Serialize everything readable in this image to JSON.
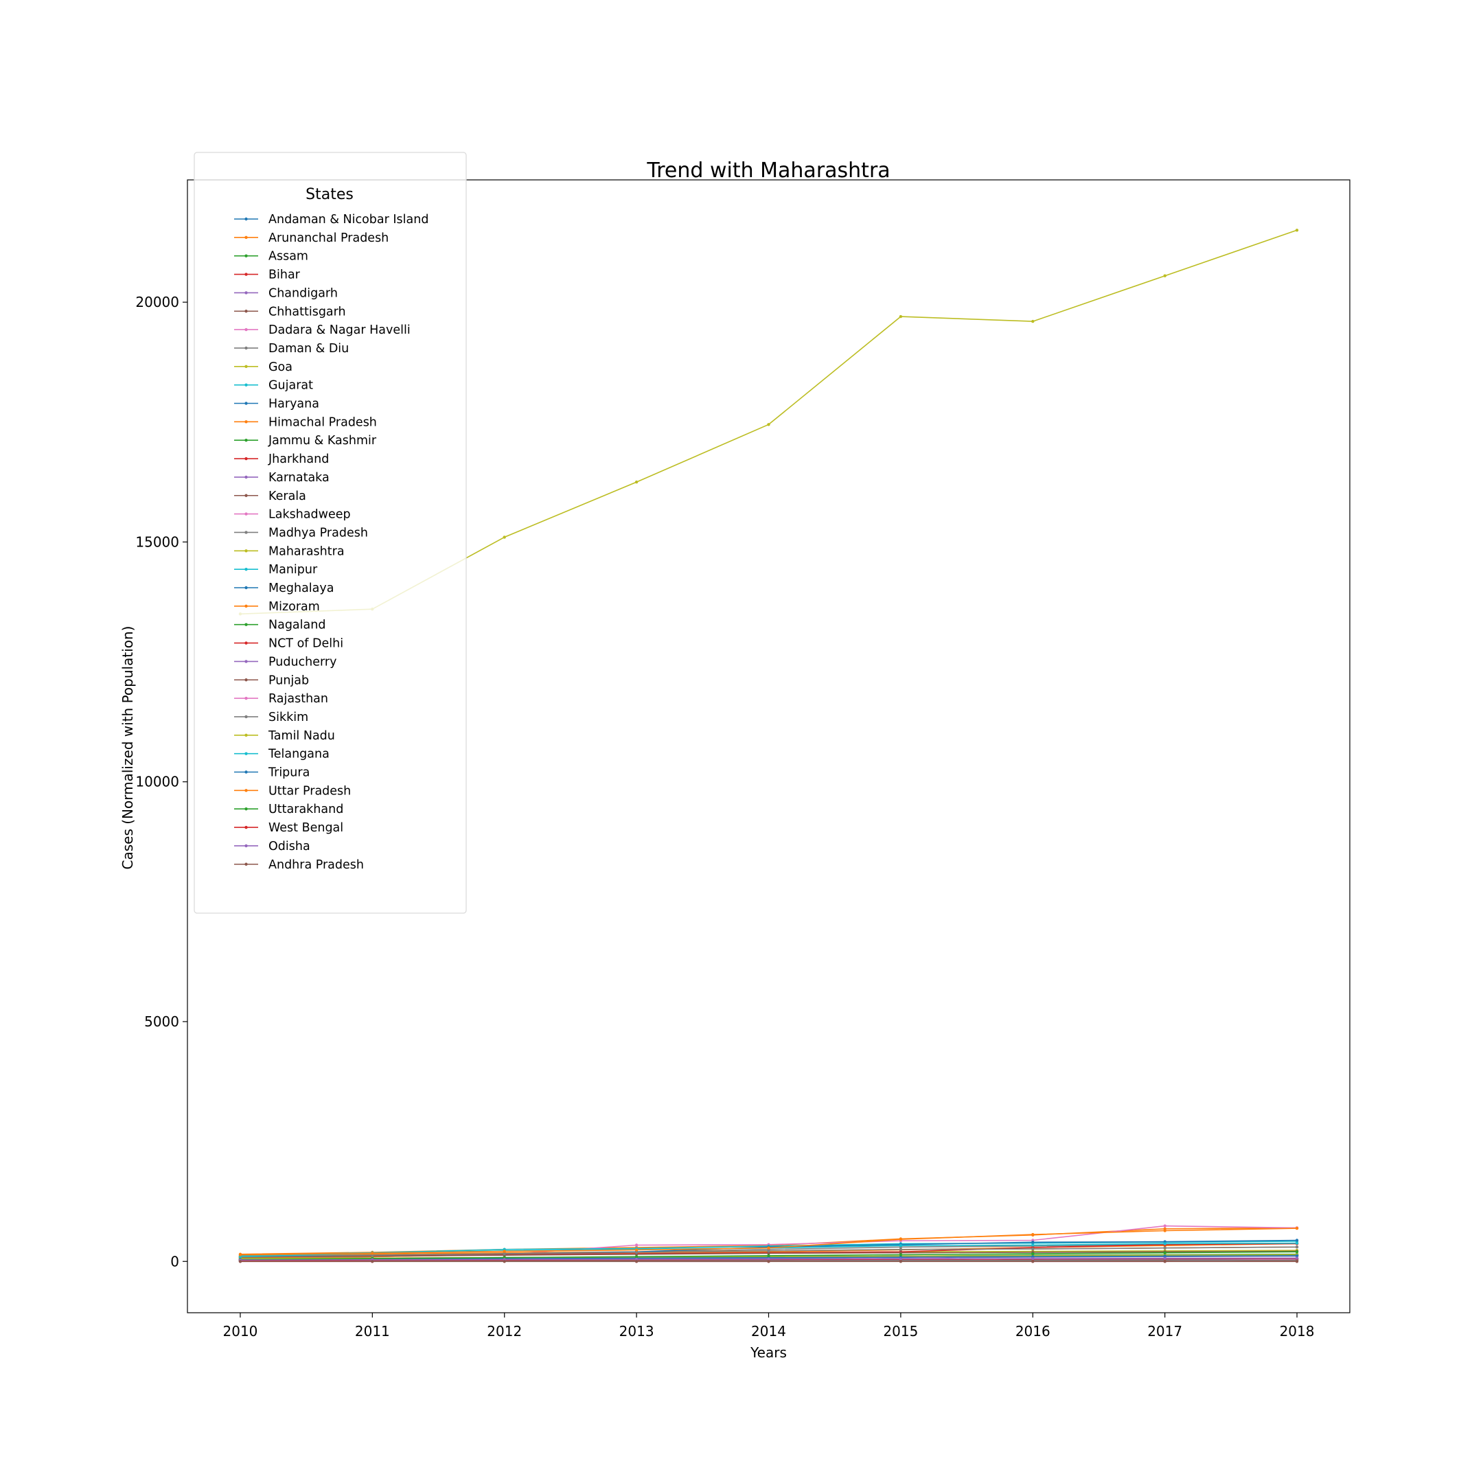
{
  "chart_data": {
    "type": "line",
    "title": "Trend with Maharashtra",
    "xlabel": "Years",
    "ylabel": "Cases (Normalized with Population)",
    "x": [
      2010,
      2011,
      2012,
      2013,
      2014,
      2015,
      2016,
      2017,
      2018
    ],
    "x_ticks": [
      "2010",
      "2011",
      "2012",
      "2013",
      "2014",
      "2015",
      "2016",
      "2017",
      "2018"
    ],
    "y_ticks": [
      "0",
      "5000",
      "10000",
      "15000",
      "20000"
    ],
    "y_tick_values": [
      0,
      5000,
      10000,
      15000,
      20000
    ],
    "xlim": [
      2009.6,
      2018.4
    ],
    "ylim": [
      -1070,
      22550
    ],
    "grid": false,
    "legend": {
      "title": "States",
      "placement": "upper-left"
    },
    "series": [
      {
        "name": "Andaman & Nicobar Island",
        "color": "#1f77b4",
        "values": [
          60,
          70,
          80,
          90,
          100,
          110,
          120,
          130,
          140
        ]
      },
      {
        "name": "Arunanchal Pradesh",
        "color": "#ff7f0e",
        "values": [
          150,
          190,
          250,
          290,
          330,
          470,
          550,
          680,
          700
        ]
      },
      {
        "name": "Assam",
        "color": "#2ca02c",
        "values": [
          40,
          50,
          60,
          70,
          80,
          90,
          100,
          110,
          120
        ]
      },
      {
        "name": "Bihar",
        "color": "#d62728",
        "values": [
          5,
          8,
          10,
          12,
          15,
          18,
          20,
          22,
          25
        ]
      },
      {
        "name": "Chandigarh",
        "color": "#9467bd",
        "values": [
          30,
          40,
          50,
          60,
          70,
          80,
          90,
          100,
          110
        ]
      },
      {
        "name": "Chhattisgarh",
        "color": "#8c564b",
        "values": [
          50,
          60,
          70,
          80,
          90,
          100,
          110,
          120,
          130
        ]
      },
      {
        "name": "Dadara & Nagar Havelli",
        "color": "#e377c2",
        "values": [
          80,
          100,
          150,
          340,
          350,
          430,
          440,
          740,
          700
        ]
      },
      {
        "name": "Daman & Diu",
        "color": "#7f7f7f",
        "values": [
          60,
          100,
          150,
          200,
          250,
          300,
          320,
          350,
          380
        ]
      },
      {
        "name": "Goa",
        "color": "#bcbd22",
        "values": [
          100,
          120,
          140,
          160,
          180,
          200,
          210,
          220,
          230
        ]
      },
      {
        "name": "Gujarat",
        "color": "#17becf",
        "values": [
          10,
          12,
          14,
          16,
          18,
          20,
          22,
          24,
          26
        ]
      },
      {
        "name": "Haryana",
        "color": "#1f77b4",
        "values": [
          40,
          50,
          60,
          70,
          80,
          90,
          100,
          110,
          120
        ]
      },
      {
        "name": "Himachal Pradesh",
        "color": "#ff7f0e",
        "values": [
          120,
          150,
          180,
          200,
          220,
          250,
          260,
          280,
          300
        ]
      },
      {
        "name": "Jammu & Kashmir",
        "color": "#2ca02c",
        "values": [
          20,
          25,
          30,
          35,
          40,
          45,
          50,
          55,
          60
        ]
      },
      {
        "name": "Jharkhand",
        "color": "#d62728",
        "values": [
          8,
          10,
          12,
          14,
          16,
          18,
          20,
          22,
          24
        ]
      },
      {
        "name": "Karnataka",
        "color": "#9467bd",
        "values": [
          15,
          18,
          20,
          22,
          25,
          28,
          30,
          32,
          35
        ]
      },
      {
        "name": "Kerala",
        "color": "#8c564b",
        "values": [
          20,
          25,
          30,
          35,
          40,
          45,
          50,
          55,
          60
        ]
      },
      {
        "name": "Lakshadweep",
        "color": "#e377c2",
        "values": [
          0,
          0,
          50,
          0,
          0,
          100,
          0,
          0,
          50
        ]
      },
      {
        "name": "Madhya Pradesh",
        "color": "#7f7f7f",
        "values": [
          10,
          12,
          14,
          16,
          18,
          20,
          22,
          24,
          26
        ]
      },
      {
        "name": "Maharashtra",
        "color": "#bcbd22",
        "values": [
          13500,
          13600,
          15100,
          16250,
          17450,
          19700,
          19600,
          20550,
          21500
        ]
      },
      {
        "name": "Manipur",
        "color": "#17becf",
        "values": [
          130,
          180,
          250,
          270,
          320,
          370,
          380,
          400,
          420
        ]
      },
      {
        "name": "Meghalaya",
        "color": "#1f77b4",
        "values": [
          80,
          120,
          160,
          200,
          300,
          350,
          400,
          410,
          440
        ]
      },
      {
        "name": "Mizoram",
        "color": "#ff7f0e",
        "values": [
          80,
          100,
          140,
          170,
          200,
          240,
          290,
          330,
          370
        ]
      },
      {
        "name": "Nagaland",
        "color": "#2ca02c",
        "values": [
          30,
          40,
          60,
          80,
          90,
          110,
          130,
          140,
          150
        ]
      },
      {
        "name": "NCT of Delhi",
        "color": "#d62728",
        "values": [
          100,
          120,
          150,
          160,
          180,
          200,
          290,
          350,
          370
        ]
      },
      {
        "name": "Puducherry",
        "color": "#9467bd",
        "values": [
          60,
          70,
          80,
          90,
          100,
          110,
          120,
          130,
          140
        ]
      },
      {
        "name": "Punjab",
        "color": "#8c564b",
        "values": [
          90,
          110,
          130,
          150,
          170,
          180,
          190,
          200,
          210
        ]
      },
      {
        "name": "Rajasthan",
        "color": "#e377c2",
        "values": [
          50,
          60,
          70,
          80,
          90,
          100,
          110,
          120,
          130
        ]
      },
      {
        "name": "Sikkim",
        "color": "#7f7f7f",
        "values": [
          100,
          130,
          160,
          190,
          220,
          250,
          260,
          280,
          300
        ]
      },
      {
        "name": "Tamil Nadu",
        "color": "#bcbd22",
        "values": [
          60,
          70,
          80,
          90,
          100,
          110,
          120,
          130,
          140
        ]
      },
      {
        "name": "Telangana",
        "color": "#17becf",
        "values": [
          100,
          170,
          220,
          250,
          280,
          330,
          340,
          370,
          380
        ]
      },
      {
        "name": "Tripura",
        "color": "#1f77b4",
        "values": [
          40,
          50,
          60,
          70,
          80,
          90,
          100,
          110,
          120
        ]
      },
      {
        "name": "Uttar Pradesh",
        "color": "#ff7f0e",
        "values": [
          140,
          170,
          210,
          240,
          280,
          460,
          560,
          640,
          690
        ]
      },
      {
        "name": "Uttarakhand",
        "color": "#2ca02c",
        "values": [
          40,
          60,
          80,
          100,
          120,
          140,
          160,
          180,
          200
        ]
      },
      {
        "name": "West Bengal",
        "color": "#d62728",
        "values": [
          20,
          25,
          30,
          35,
          40,
          45,
          50,
          55,
          60
        ]
      },
      {
        "name": "Odisha",
        "color": "#9467bd",
        "values": [
          30,
          35,
          40,
          45,
          50,
          55,
          60,
          65,
          70
        ]
      },
      {
        "name": "Andhra Pradesh",
        "color": "#8c564b",
        "values": [
          0,
          0,
          0,
          0,
          0,
          0,
          0,
          0,
          0
        ]
      }
    ]
  }
}
